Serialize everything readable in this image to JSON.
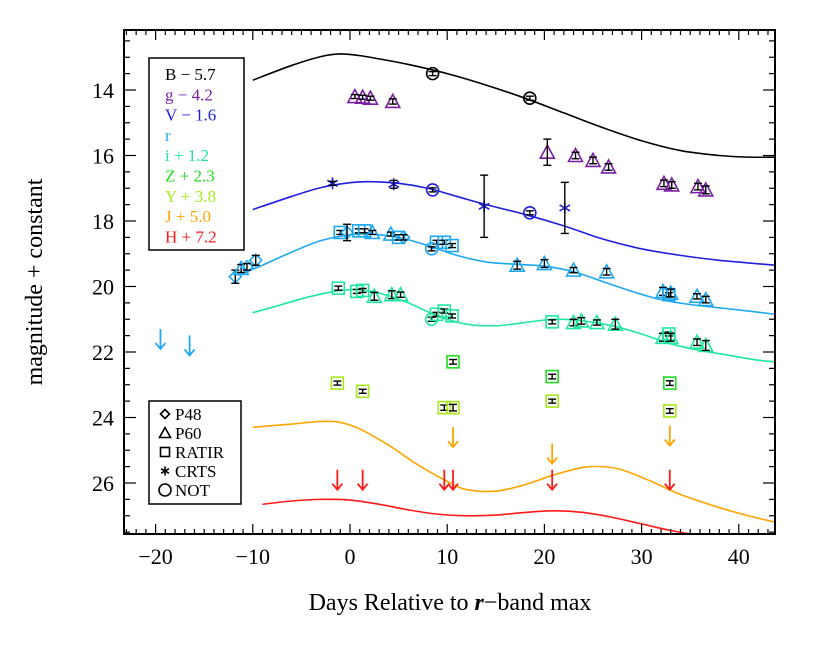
{
  "chart_data": {
    "type": "scatter",
    "title": "",
    "xlabel": "Days Relative to r−band max",
    "xlabel_parts": [
      "Days Relative to ",
      "r",
      "−band max"
    ],
    "ylabel": "magnitude + constant",
    "xlim": [
      -23.3,
      43.8
    ],
    "ylim": [
      27.6,
      12.2
    ],
    "y_inverted": true,
    "xticks": [
      -20,
      -10,
      0,
      10,
      20,
      30,
      40
    ],
    "yticks": [
      14,
      16,
      18,
      20,
      22,
      24,
      26
    ],
    "x_minor_step": 1,
    "y_minor_step": 0.5,
    "grid": false,
    "band_legend": [
      {
        "label": "B − 5.7",
        "color": "#000000"
      },
      {
        "label": "g − 4.2",
        "color": "#7B1FA2"
      },
      {
        "label": "V − 1.6",
        "color": "#1F1FE0"
      },
      {
        "label": "r",
        "color": "#1EA8F0"
      },
      {
        "label": "i + 1.2",
        "color": "#1EE8A0"
      },
      {
        "label": "Z + 2.3",
        "color": "#22DD22"
      },
      {
        "label": "Y + 3.8",
        "color": "#A6EA1A"
      },
      {
        "label": "J + 5.0",
        "color": "#FFA500"
      },
      {
        "label": "H + 7.2",
        "color": "#FF1A1A"
      }
    ],
    "instrument_legend": [
      {
        "label": "P48",
        "marker": "diamond"
      },
      {
        "label": "P60",
        "marker": "triangle"
      },
      {
        "label": "RATIR",
        "marker": "square"
      },
      {
        "label": "CRTS",
        "marker": "asterisk"
      },
      {
        "label": "NOT",
        "marker": "circle"
      }
    ],
    "model_curves": [
      {
        "band": "B",
        "color": "#000000",
        "x": [
          -10,
          -6,
          -3,
          -1,
          1,
          3,
          6,
          10,
          14,
          18,
          22,
          26,
          30,
          34,
          38,
          41,
          43.8
        ],
        "y": [
          13.7,
          13.25,
          12.98,
          12.9,
          12.95,
          13.05,
          13.22,
          13.5,
          13.85,
          14.25,
          14.7,
          15.15,
          15.55,
          15.85,
          16.0,
          16.05,
          16.05
        ]
      },
      {
        "band": "V",
        "color": "#1F1FE0",
        "x": [
          -10,
          -6,
          -3,
          0,
          2,
          5,
          8,
          11,
          14,
          18,
          22,
          26,
          30,
          34,
          38,
          43.8
        ],
        "y": [
          17.65,
          17.25,
          16.98,
          16.83,
          16.8,
          16.85,
          17.0,
          17.25,
          17.5,
          17.8,
          18.15,
          18.55,
          18.85,
          19.05,
          19.2,
          19.35
        ]
      },
      {
        "band": "r",
        "color": "#1EA8F0",
        "x": [
          -11.5,
          -9,
          -6,
          -3,
          0,
          2,
          5,
          8,
          11,
          14,
          17,
          20,
          23,
          26,
          29,
          32,
          35,
          38,
          41,
          43.8
        ],
        "y": [
          19.65,
          19.35,
          18.95,
          18.6,
          18.42,
          18.4,
          18.5,
          18.75,
          19.05,
          19.25,
          19.32,
          19.38,
          19.55,
          19.85,
          20.15,
          20.4,
          20.55,
          20.65,
          20.75,
          20.85
        ]
      },
      {
        "band": "i",
        "color": "#1EE8A0",
        "x": [
          -10,
          -7,
          -4,
          -1,
          1,
          3,
          6,
          9,
          12,
          15,
          18,
          21,
          24,
          27,
          30,
          33,
          36,
          39,
          42,
          43.8
        ],
        "y": [
          20.8,
          20.55,
          20.3,
          20.12,
          20.1,
          20.2,
          20.5,
          20.9,
          21.15,
          21.2,
          21.1,
          21.0,
          21.05,
          21.2,
          21.45,
          21.75,
          21.95,
          22.1,
          22.25,
          22.3
        ]
      },
      {
        "band": "J",
        "color": "#FFA500",
        "x": [
          -10,
          -6,
          -3,
          -1,
          1,
          4,
          7,
          10,
          12,
          15,
          18,
          21,
          24,
          26,
          28,
          31,
          34,
          38,
          41,
          43.8
        ],
        "y": [
          24.3,
          24.2,
          24.12,
          24.15,
          24.35,
          24.85,
          25.45,
          25.95,
          26.2,
          26.25,
          26.05,
          25.75,
          25.52,
          25.5,
          25.6,
          25.95,
          26.35,
          26.75,
          27.0,
          27.2
        ]
      },
      {
        "band": "H",
        "color": "#FF1A1A",
        "x": [
          -9,
          -6,
          -3,
          0,
          3,
          6,
          9,
          12,
          15,
          18,
          21,
          24,
          27,
          30,
          33,
          36,
          39,
          41.5
        ],
        "y": [
          26.65,
          26.55,
          26.5,
          26.52,
          26.65,
          26.82,
          26.95,
          27.0,
          26.98,
          26.9,
          26.85,
          26.9,
          27.05,
          27.25,
          27.45,
          27.6,
          27.7,
          27.75
        ]
      }
    ],
    "observations": [
      {
        "band": "B",
        "color": "#000000",
        "instrument": "NOT",
        "x": 8.5,
        "y": 13.5,
        "err": 0.05
      },
      {
        "band": "B",
        "color": "#000000",
        "instrument": "NOT",
        "x": 18.5,
        "y": 14.25,
        "err": 0.05
      },
      {
        "band": "g",
        "color": "#7B1FA2",
        "instrument": "P60",
        "x": 0.5,
        "y": 14.2,
        "err": 0.05
      },
      {
        "band": "g",
        "color": "#7B1FA2",
        "instrument": "P60",
        "x": 1.3,
        "y": 14.22,
        "err": 0.05
      },
      {
        "band": "g",
        "color": "#7B1FA2",
        "instrument": "P60",
        "x": 2.1,
        "y": 14.25,
        "err": 0.05
      },
      {
        "band": "g",
        "color": "#7B1FA2",
        "instrument": "P60",
        "x": 4.4,
        "y": 14.35,
        "err": 0.08
      },
      {
        "band": "g",
        "color": "#7B1FA2",
        "instrument": "P60",
        "x": 20.3,
        "y": 15.9,
        "err": 0.4
      },
      {
        "band": "g",
        "color": "#7B1FA2",
        "instrument": "P60",
        "x": 23.2,
        "y": 16.0,
        "err": 0.1
      },
      {
        "band": "g",
        "color": "#7B1FA2",
        "instrument": "P60",
        "x": 25.0,
        "y": 16.15,
        "err": 0.1
      },
      {
        "band": "g",
        "color": "#7B1FA2",
        "instrument": "P60",
        "x": 26.6,
        "y": 16.35,
        "err": 0.1
      },
      {
        "band": "g",
        "color": "#7B1FA2",
        "instrument": "P60",
        "x": 32.3,
        "y": 16.85,
        "err": 0.1
      },
      {
        "band": "g",
        "color": "#7B1FA2",
        "instrument": "P60",
        "x": 33.1,
        "y": 16.9,
        "err": 0.1
      },
      {
        "band": "g",
        "color": "#7B1FA2",
        "instrument": "P60",
        "x": 35.8,
        "y": 16.95,
        "err": 0.1
      },
      {
        "band": "g",
        "color": "#7B1FA2",
        "instrument": "P60",
        "x": 36.6,
        "y": 17.05,
        "err": 0.12
      },
      {
        "band": "V",
        "color": "#1F1FE0",
        "instrument": "CRTS",
        "x": -1.8,
        "y": 16.85,
        "err": 0.05
      },
      {
        "band": "V",
        "color": "#1F1FE0",
        "instrument": "CRTS",
        "x": 4.5,
        "y": 16.88,
        "err": 0.12
      },
      {
        "band": "V",
        "color": "#1F1FE0",
        "instrument": "NOT",
        "x": 8.5,
        "y": 17.05,
        "err": 0.05
      },
      {
        "band": "V",
        "color": "#1F1FE0",
        "instrument": "CRTS",
        "x": 13.8,
        "y": 17.55,
        "err": 0.95
      },
      {
        "band": "V",
        "color": "#1F1FE0",
        "instrument": "NOT",
        "x": 18.5,
        "y": 17.75,
        "err": 0.05
      },
      {
        "band": "V",
        "color": "#1F1FE0",
        "instrument": "CRTS",
        "x": 22.1,
        "y": 17.6,
        "err": 0.78
      },
      {
        "band": "r",
        "color": "#1EA8F0",
        "instrument": "P48",
        "x": -11.8,
        "y": 19.7,
        "err": 0.2
      },
      {
        "band": "r",
        "color": "#1EA8F0",
        "instrument": "P60",
        "x": -11.2,
        "y": 19.45,
        "err": 0.12
      },
      {
        "band": "r",
        "color": "#1EA8F0",
        "instrument": "P48",
        "x": -10.6,
        "y": 19.4,
        "err": 0.1
      },
      {
        "band": "r",
        "color": "#1EA8F0",
        "instrument": "P48",
        "x": -9.7,
        "y": 19.2,
        "err": 0.15
      },
      {
        "band": "r",
        "color": "#1EA8F0",
        "instrument": "RATIR",
        "x": -1.0,
        "y": 18.35,
        "err": 0.05
      },
      {
        "band": "r",
        "color": "#1EA8F0",
        "instrument": "P48",
        "x": -0.3,
        "y": 18.35,
        "err": 0.25
      },
      {
        "band": "r",
        "color": "#1EA8F0",
        "instrument": "RATIR",
        "x": 0.9,
        "y": 18.3,
        "err": 0.05
      },
      {
        "band": "r",
        "color": "#1EA8F0",
        "instrument": "RATIR",
        "x": 1.5,
        "y": 18.3,
        "err": 0.05
      },
      {
        "band": "r",
        "color": "#1EA8F0",
        "instrument": "P60",
        "x": 2.3,
        "y": 18.35,
        "err": 0.05
      },
      {
        "band": "r",
        "color": "#1EA8F0",
        "instrument": "P60",
        "x": 4.2,
        "y": 18.4,
        "err": 0.05
      },
      {
        "band": "r",
        "color": "#1EA8F0",
        "instrument": "RATIR",
        "x": 5.0,
        "y": 18.5,
        "err": 0.08
      },
      {
        "band": "r",
        "color": "#1EA8F0",
        "instrument": "P48",
        "x": 5.5,
        "y": 18.5,
        "err": 0.08
      },
      {
        "band": "r",
        "color": "#1EA8F0",
        "instrument": "RATIR",
        "x": 8.9,
        "y": 18.65,
        "err": 0.05
      },
      {
        "band": "r",
        "color": "#1EA8F0",
        "instrument": "NOT",
        "x": 8.4,
        "y": 18.85,
        "err": 0.05
      },
      {
        "band": "r",
        "color": "#1EA8F0",
        "instrument": "RATIR",
        "x": 9.7,
        "y": 18.65,
        "err": 0.05
      },
      {
        "band": "r",
        "color": "#1EA8F0",
        "instrument": "RATIR",
        "x": 10.5,
        "y": 18.75,
        "err": 0.05
      },
      {
        "band": "r",
        "color": "#1EA8F0",
        "instrument": "P60",
        "x": 17.2,
        "y": 19.35,
        "err": 0.12
      },
      {
        "band": "r",
        "color": "#1EA8F0",
        "instrument": "P60",
        "x": 20.0,
        "y": 19.3,
        "err": 0.12
      },
      {
        "band": "r",
        "color": "#1EA8F0",
        "instrument": "P60",
        "x": 23.0,
        "y": 19.5,
        "err": 0.08
      },
      {
        "band": "r",
        "color": "#1EA8F0",
        "instrument": "P60",
        "x": 26.4,
        "y": 19.55,
        "err": 0.1
      },
      {
        "band": "r",
        "color": "#1EA8F0",
        "instrument": "P60",
        "x": 32.2,
        "y": 20.15,
        "err": 0.12
      },
      {
        "band": "r",
        "color": "#1EA8F0",
        "instrument": "RATIR",
        "x": 32.8,
        "y": 20.25,
        "err": 0.05
      },
      {
        "band": "r",
        "color": "#1EA8F0",
        "instrument": "P60",
        "x": 33.0,
        "y": 20.2,
        "err": 0.12
      },
      {
        "band": "r",
        "color": "#1EA8F0",
        "instrument": "P60",
        "x": 35.7,
        "y": 20.3,
        "err": 0.08
      },
      {
        "band": "r",
        "color": "#1EA8F0",
        "instrument": "P60",
        "x": 36.6,
        "y": 20.4,
        "err": 0.1
      },
      {
        "band": "i",
        "color": "#1EE8A0",
        "instrument": "RATIR",
        "x": -1.2,
        "y": 20.05,
        "err": 0.05
      },
      {
        "band": "i",
        "color": "#1EE8A0",
        "instrument": "RATIR",
        "x": 0.7,
        "y": 20.15,
        "err": 0.05
      },
      {
        "band": "i",
        "color": "#1EE8A0",
        "instrument": "RATIR",
        "x": 1.3,
        "y": 20.12,
        "err": 0.05
      },
      {
        "band": "i",
        "color": "#1EE8A0",
        "instrument": "P60",
        "x": 2.5,
        "y": 20.3,
        "err": 0.12
      },
      {
        "band": "i",
        "color": "#1EE8A0",
        "instrument": "P60",
        "x": 4.3,
        "y": 20.25,
        "err": 0.12
      },
      {
        "band": "i",
        "color": "#1EE8A0",
        "instrument": "P60",
        "x": 5.2,
        "y": 20.25,
        "err": 0.08
      },
      {
        "band": "i",
        "color": "#1EE8A0",
        "instrument": "NOT",
        "x": 8.4,
        "y": 21.0,
        "err": 0.05
      },
      {
        "band": "i",
        "color": "#1EE8A0",
        "instrument": "RATIR",
        "x": 8.9,
        "y": 20.85,
        "err": 0.05
      },
      {
        "band": "i",
        "color": "#1EE8A0",
        "instrument": "RATIR",
        "x": 9.7,
        "y": 20.75,
        "err": 0.05
      },
      {
        "band": "i",
        "color": "#1EE8A0",
        "instrument": "RATIR",
        "x": 10.5,
        "y": 20.9,
        "err": 0.05
      },
      {
        "band": "i",
        "color": "#1EE8A0",
        "instrument": "RATIR",
        "x": 20.8,
        "y": 21.08,
        "err": 0.05
      },
      {
        "band": "i",
        "color": "#1EE8A0",
        "instrument": "P60",
        "x": 23.0,
        "y": 21.1,
        "err": 0.1
      },
      {
        "band": "i",
        "color": "#1EE8A0",
        "instrument": "P60",
        "x": 23.8,
        "y": 21.05,
        "err": 0.1
      },
      {
        "band": "i",
        "color": "#1EE8A0",
        "instrument": "P60",
        "x": 25.4,
        "y": 21.1,
        "err": 0.08
      },
      {
        "band": "i",
        "color": "#1EE8A0",
        "instrument": "P60",
        "x": 27.3,
        "y": 21.15,
        "err": 0.15
      },
      {
        "band": "i",
        "color": "#1EE8A0",
        "instrument": "P60",
        "x": 32.2,
        "y": 21.55,
        "err": 0.12
      },
      {
        "band": "i",
        "color": "#1EE8A0",
        "instrument": "RATIR",
        "x": 32.8,
        "y": 21.45,
        "err": 0.05
      },
      {
        "band": "i",
        "color": "#1EE8A0",
        "instrument": "P60",
        "x": 33.0,
        "y": 21.55,
        "err": 0.12
      },
      {
        "band": "i",
        "color": "#1EE8A0",
        "instrument": "P60",
        "x": 35.7,
        "y": 21.7,
        "err": 0.1
      },
      {
        "band": "i",
        "color": "#1EE8A0",
        "instrument": "P60",
        "x": 36.6,
        "y": 21.8,
        "err": 0.15
      },
      {
        "band": "Z",
        "color": "#22DD22",
        "instrument": "RATIR",
        "x": 10.6,
        "y": 22.3,
        "err": 0.07
      },
      {
        "band": "Z",
        "color": "#22DD22",
        "instrument": "RATIR",
        "x": 20.8,
        "y": 22.75,
        "err": 0.07
      },
      {
        "band": "Z",
        "color": "#22DD22",
        "instrument": "RATIR",
        "x": 32.9,
        "y": 22.95,
        "err": 0.07
      },
      {
        "band": "Y",
        "color": "#A6EA1A",
        "instrument": "RATIR",
        "x": -1.3,
        "y": 22.95,
        "err": 0.05
      },
      {
        "band": "Y",
        "color": "#A6EA1A",
        "instrument": "RATIR",
        "x": 1.3,
        "y": 23.2,
        "err": 0.05
      },
      {
        "band": "Y",
        "color": "#A6EA1A",
        "instrument": "RATIR",
        "x": 9.7,
        "y": 23.7,
        "err": 0.08
      },
      {
        "band": "Y",
        "color": "#A6EA1A",
        "instrument": "RATIR",
        "x": 10.6,
        "y": 23.7,
        "err": 0.1
      },
      {
        "band": "Y",
        "color": "#A6EA1A",
        "instrument": "RATIR",
        "x": 20.8,
        "y": 23.5,
        "err": 0.05
      },
      {
        "band": "Y",
        "color": "#A6EA1A",
        "instrument": "RATIR",
        "x": 32.9,
        "y": 23.8,
        "err": 0.07
      }
    ],
    "upper_limits": [
      {
        "band": "r",
        "color": "#1EA8F0",
        "x": -19.5,
        "y": 21.6
      },
      {
        "band": "r",
        "color": "#1EA8F0",
        "x": -16.5,
        "y": 21.8
      },
      {
        "band": "J",
        "color": "#FFA500",
        "x": 10.6,
        "y": 24.6
      },
      {
        "band": "J",
        "color": "#FFA500",
        "x": 20.8,
        "y": 25.1
      },
      {
        "band": "J",
        "color": "#FFA500",
        "x": 32.9,
        "y": 24.55
      },
      {
        "band": "H",
        "color": "#FF1A1A",
        "x": -1.3,
        "y": 25.9
      },
      {
        "band": "H",
        "color": "#FF1A1A",
        "x": 1.3,
        "y": 25.9
      },
      {
        "band": "H",
        "color": "#FF1A1A",
        "x": 9.7,
        "y": 25.9
      },
      {
        "band": "H",
        "color": "#FF1A1A",
        "x": 10.6,
        "y": 25.9
      },
      {
        "band": "H",
        "color": "#FF1A1A",
        "x": 20.8,
        "y": 25.9
      },
      {
        "band": "H",
        "color": "#FF1A1A",
        "x": 32.9,
        "y": 25.9
      }
    ]
  }
}
